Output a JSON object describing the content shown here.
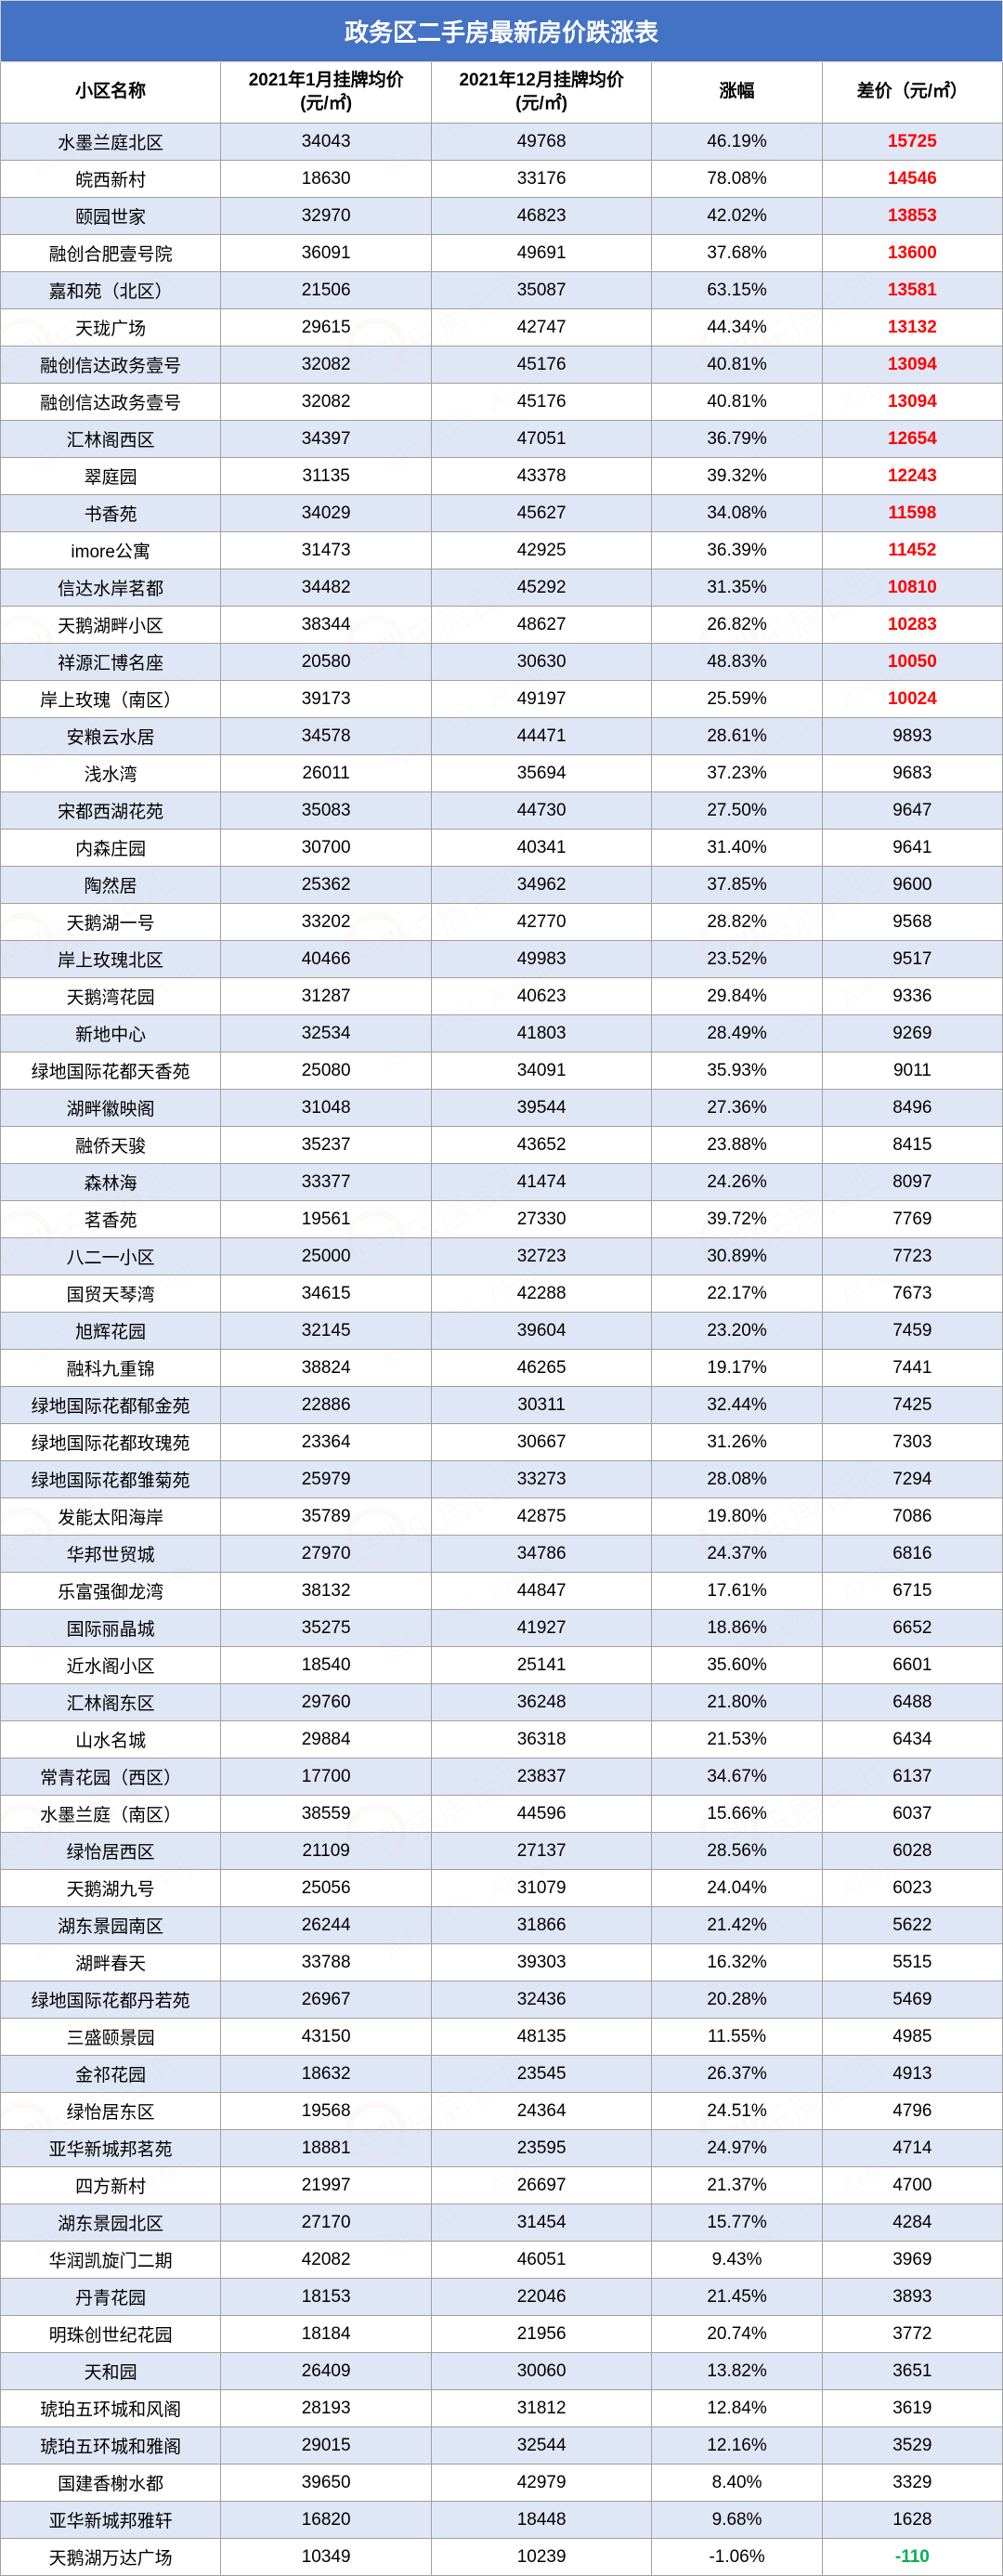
{
  "title": "政务区二手房最新房价跌涨表",
  "columns": [
    "小区名称",
    "2021年1月挂牌均价\n(元/㎡)",
    "2021年12月挂牌均价\n(元/㎡)",
    "涨幅",
    "差价（元/㎡）"
  ],
  "style": {
    "header_bg": "#4472c4",
    "header_text": "#ffffff",
    "row_odd_bg": "#d9e2f3",
    "row_even_bg": "#ffffff",
    "border_color": "#a0a0a0",
    "diff_red": "#ff0000",
    "diff_green": "#00b050",
    "diff_black": "#000000",
    "title_fontsize": 26,
    "head_fontsize": 19,
    "cell_fontsize": 19,
    "red_threshold": 10000
  },
  "watermark": {
    "text": "购房微信：AHleju",
    "brand": "乐居合肥",
    "logo_text": "LEJU",
    "text_color": "rgba(200,200,200,0.28)",
    "logo_color": "rgba(230,80,80,0.22)"
  },
  "rows": [
    {
      "name": "水墨兰庭北区",
      "jan": 34043,
      "dec": 49768,
      "pct": "46.19%",
      "diff": 15725
    },
    {
      "name": "皖西新村",
      "jan": 18630,
      "dec": 33176,
      "pct": "78.08%",
      "diff": 14546
    },
    {
      "name": "颐园世家",
      "jan": 32970,
      "dec": 46823,
      "pct": "42.02%",
      "diff": 13853
    },
    {
      "name": "融创合肥壹号院",
      "jan": 36091,
      "dec": 49691,
      "pct": "37.68%",
      "diff": 13600
    },
    {
      "name": "嘉和苑（北区）",
      "jan": 21506,
      "dec": 35087,
      "pct": "63.15%",
      "diff": 13581
    },
    {
      "name": "天珑广场",
      "jan": 29615,
      "dec": 42747,
      "pct": "44.34%",
      "diff": 13132
    },
    {
      "name": "融创信达政务壹号",
      "jan": 32082,
      "dec": 45176,
      "pct": "40.81%",
      "diff": 13094
    },
    {
      "name": "融创信达政务壹号",
      "jan": 32082,
      "dec": 45176,
      "pct": "40.81%",
      "diff": 13094
    },
    {
      "name": "汇林阁西区",
      "jan": 34397,
      "dec": 47051,
      "pct": "36.79%",
      "diff": 12654
    },
    {
      "name": "翠庭园",
      "jan": 31135,
      "dec": 43378,
      "pct": "39.32%",
      "diff": 12243
    },
    {
      "name": "书香苑",
      "jan": 34029,
      "dec": 45627,
      "pct": "34.08%",
      "diff": 11598
    },
    {
      "name": "imore公寓",
      "jan": 31473,
      "dec": 42925,
      "pct": "36.39%",
      "diff": 11452
    },
    {
      "name": "信达水岸茗都",
      "jan": 34482,
      "dec": 45292,
      "pct": "31.35%",
      "diff": 10810
    },
    {
      "name": "天鹅湖畔小区",
      "jan": 38344,
      "dec": 48627,
      "pct": "26.82%",
      "diff": 10283
    },
    {
      "name": "祥源汇博名座",
      "jan": 20580,
      "dec": 30630,
      "pct": "48.83%",
      "diff": 10050
    },
    {
      "name": "岸上玫瑰（南区）",
      "jan": 39173,
      "dec": 49197,
      "pct": "25.59%",
      "diff": 10024
    },
    {
      "name": "安粮云水居",
      "jan": 34578,
      "dec": 44471,
      "pct": "28.61%",
      "diff": 9893
    },
    {
      "name": "浅水湾",
      "jan": 26011,
      "dec": 35694,
      "pct": "37.23%",
      "diff": 9683
    },
    {
      "name": "宋都西湖花苑",
      "jan": 35083,
      "dec": 44730,
      "pct": "27.50%",
      "diff": 9647
    },
    {
      "name": "内森庄园",
      "jan": 30700,
      "dec": 40341,
      "pct": "31.40%",
      "diff": 9641
    },
    {
      "name": "陶然居",
      "jan": 25362,
      "dec": 34962,
      "pct": "37.85%",
      "diff": 9600
    },
    {
      "name": "天鹅湖一号",
      "jan": 33202,
      "dec": 42770,
      "pct": "28.82%",
      "diff": 9568
    },
    {
      "name": "岸上玫瑰北区",
      "jan": 40466,
      "dec": 49983,
      "pct": "23.52%",
      "diff": 9517
    },
    {
      "name": "天鹅湾花园",
      "jan": 31287,
      "dec": 40623,
      "pct": "29.84%",
      "diff": 9336
    },
    {
      "name": "新地中心",
      "jan": 32534,
      "dec": 41803,
      "pct": "28.49%",
      "diff": 9269
    },
    {
      "name": "绿地国际花都天香苑",
      "jan": 25080,
      "dec": 34091,
      "pct": "35.93%",
      "diff": 9011
    },
    {
      "name": "湖畔徽映阁",
      "jan": 31048,
      "dec": 39544,
      "pct": "27.36%",
      "diff": 8496
    },
    {
      "name": "融侨天骏",
      "jan": 35237,
      "dec": 43652,
      "pct": "23.88%",
      "diff": 8415
    },
    {
      "name": "森林海",
      "jan": 33377,
      "dec": 41474,
      "pct": "24.26%",
      "diff": 8097
    },
    {
      "name": "茗香苑",
      "jan": 19561,
      "dec": 27330,
      "pct": "39.72%",
      "diff": 7769
    },
    {
      "name": "八二一小区",
      "jan": 25000,
      "dec": 32723,
      "pct": "30.89%",
      "diff": 7723
    },
    {
      "name": "国贸天琴湾",
      "jan": 34615,
      "dec": 42288,
      "pct": "22.17%",
      "diff": 7673
    },
    {
      "name": "旭辉花园",
      "jan": 32145,
      "dec": 39604,
      "pct": "23.20%",
      "diff": 7459
    },
    {
      "name": "融科九重锦",
      "jan": 38824,
      "dec": 46265,
      "pct": "19.17%",
      "diff": 7441
    },
    {
      "name": "绿地国际花都郁金苑",
      "jan": 22886,
      "dec": 30311,
      "pct": "32.44%",
      "diff": 7425
    },
    {
      "name": "绿地国际花都玫瑰苑",
      "jan": 23364,
      "dec": 30667,
      "pct": "31.26%",
      "diff": 7303
    },
    {
      "name": "绿地国际花都雏菊苑",
      "jan": 25979,
      "dec": 33273,
      "pct": "28.08%",
      "diff": 7294
    },
    {
      "name": "发能太阳海岸",
      "jan": 35789,
      "dec": 42875,
      "pct": "19.80%",
      "diff": 7086
    },
    {
      "name": "华邦世贸城",
      "jan": 27970,
      "dec": 34786,
      "pct": "24.37%",
      "diff": 6816
    },
    {
      "name": "乐富强御龙湾",
      "jan": 38132,
      "dec": 44847,
      "pct": "17.61%",
      "diff": 6715
    },
    {
      "name": "国际丽晶城",
      "jan": 35275,
      "dec": 41927,
      "pct": "18.86%",
      "diff": 6652
    },
    {
      "name": "近水阁小区",
      "jan": 18540,
      "dec": 25141,
      "pct": "35.60%",
      "diff": 6601
    },
    {
      "name": "汇林阁东区",
      "jan": 29760,
      "dec": 36248,
      "pct": "21.80%",
      "diff": 6488
    },
    {
      "name": "山水名城",
      "jan": 29884,
      "dec": 36318,
      "pct": "21.53%",
      "diff": 6434
    },
    {
      "name": "常青花园（西区）",
      "jan": 17700,
      "dec": 23837,
      "pct": "34.67%",
      "diff": 6137
    },
    {
      "name": "水墨兰庭（南区）",
      "jan": 38559,
      "dec": 44596,
      "pct": "15.66%",
      "diff": 6037
    },
    {
      "name": "绿怡居西区",
      "jan": 21109,
      "dec": 27137,
      "pct": "28.56%",
      "diff": 6028
    },
    {
      "name": "天鹅湖九号",
      "jan": 25056,
      "dec": 31079,
      "pct": "24.04%",
      "diff": 6023
    },
    {
      "name": "湖东景园南区",
      "jan": 26244,
      "dec": 31866,
      "pct": "21.42%",
      "diff": 5622
    },
    {
      "name": "湖畔春天",
      "jan": 33788,
      "dec": 39303,
      "pct": "16.32%",
      "diff": 5515
    },
    {
      "name": "绿地国际花都丹若苑",
      "jan": 26967,
      "dec": 32436,
      "pct": "20.28%",
      "diff": 5469
    },
    {
      "name": "三盛颐景园",
      "jan": 43150,
      "dec": 48135,
      "pct": "11.55%",
      "diff": 4985
    },
    {
      "name": "金祁花园",
      "jan": 18632,
      "dec": 23545,
      "pct": "26.37%",
      "diff": 4913
    },
    {
      "name": "绿怡居东区",
      "jan": 19568,
      "dec": 24364,
      "pct": "24.51%",
      "diff": 4796
    },
    {
      "name": "亚华新城邦茗苑",
      "jan": 18881,
      "dec": 23595,
      "pct": "24.97%",
      "diff": 4714
    },
    {
      "name": "四方新村",
      "jan": 21997,
      "dec": 26697,
      "pct": "21.37%",
      "diff": 4700
    },
    {
      "name": "湖东景园北区",
      "jan": 27170,
      "dec": 31454,
      "pct": "15.77%",
      "diff": 4284
    },
    {
      "name": "华润凯旋门二期",
      "jan": 42082,
      "dec": 46051,
      "pct": "9.43%",
      "diff": 3969
    },
    {
      "name": "丹青花园",
      "jan": 18153,
      "dec": 22046,
      "pct": "21.45%",
      "diff": 3893
    },
    {
      "name": "明珠创世纪花园",
      "jan": 18184,
      "dec": 21956,
      "pct": "20.74%",
      "diff": 3772
    },
    {
      "name": "天和园",
      "jan": 26409,
      "dec": 30060,
      "pct": "13.82%",
      "diff": 3651
    },
    {
      "name": "琥珀五环城和风阁",
      "jan": 28193,
      "dec": 31812,
      "pct": "12.84%",
      "diff": 3619
    },
    {
      "name": "琥珀五环城和雅阁",
      "jan": 29015,
      "dec": 32544,
      "pct": "12.16%",
      "diff": 3529
    },
    {
      "name": "国建香榭水都",
      "jan": 39650,
      "dec": 42979,
      "pct": "8.40%",
      "diff": 3329
    },
    {
      "name": "亚华新城邦雅轩",
      "jan": 16820,
      "dec": 18448,
      "pct": "9.68%",
      "diff": 1628
    },
    {
      "name": "天鹅湖万达广场",
      "jan": 10349,
      "dec": 10239,
      "pct": "-1.06%",
      "diff": -110
    }
  ]
}
